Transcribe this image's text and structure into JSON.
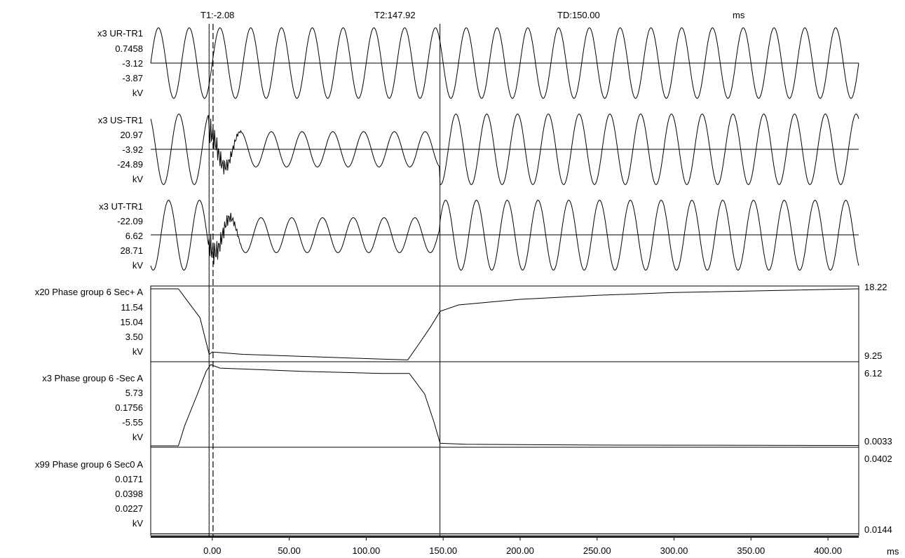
{
  "cursors": {
    "t1_label": "T1:-2.08",
    "t2_label": "T2:147.92",
    "td_label": "TD:150.00",
    "unit_label": "ms",
    "t1_ms": -2.08,
    "t2_ms": 147.92,
    "t1_secondary_ms": 0.5
  },
  "chart_data": {
    "type": "line",
    "x_unit": "ms",
    "xlim": [
      -40,
      420
    ],
    "x_ticks": [
      0,
      50,
      100,
      150,
      200,
      250,
      300,
      350,
      400
    ],
    "x_tick_labels": [
      "0.00",
      "50.00",
      "100.00",
      "150.00",
      "200.00",
      "250.00",
      "300.00",
      "350.00",
      "400.00"
    ],
    "channels": [
      {
        "name": "x3 UR-TR1",
        "labels": [
          "0.7458",
          "-3.12",
          "-3.87",
          "kV"
        ],
        "right_labels": [],
        "kind": "sine",
        "freq_hz": 50,
        "amplitude": 0.9,
        "center_level": 0.5,
        "disturbance": []
      },
      {
        "name": "x3 US-TR1",
        "labels": [
          "20.97",
          "-3.92",
          "-24.89",
          "kV"
        ],
        "right_labels": [],
        "kind": "sine",
        "freq_hz": 50,
        "amplitude": 0.9,
        "center_level": 0.5,
        "disturbance": [
          {
            "start_ms": -2,
            "end_ms": 20,
            "amplitude_factor": 0.5,
            "ringing": 0.4
          },
          {
            "start_ms": 20,
            "end_ms": 148,
            "amplitude_factor": 0.5,
            "ringing": 0
          }
        ]
      },
      {
        "name": "x3 UT-TR1",
        "labels": [
          "-22.09",
          "6.62",
          "28.71",
          "kV"
        ],
        "right_labels": [],
        "kind": "sine",
        "freq_hz": 50,
        "amplitude": 0.9,
        "center_level": 0.5,
        "disturbance": [
          {
            "start_ms": -2,
            "end_ms": 20,
            "amplitude_factor": 0.5,
            "ringing": 0.4
          },
          {
            "start_ms": 20,
            "end_ms": 148,
            "amplitude_factor": 0.5,
            "ringing": 0
          }
        ]
      },
      {
        "name": "x20 Phase group 6 Sec+ A",
        "labels": [
          "11.54",
          "15.04",
          "3.50",
          "kV"
        ],
        "right_labels": [
          "18.22",
          "9.25"
        ],
        "kind": "trace",
        "ylim": [
          9.25,
          18.22
        ],
        "x": [
          -40,
          -22,
          -15,
          -8,
          -2,
          0,
          20,
          50,
          80,
          110,
          127,
          135,
          142,
          148,
          160,
          200,
          250,
          300,
          350,
          420
        ],
        "y": [
          18.22,
          18.22,
          16.4,
          14.6,
          10.0,
          10.3,
          10.0,
          9.8,
          9.6,
          9.4,
          9.3,
          11.5,
          13.5,
          15.4,
          16.2,
          16.9,
          17.4,
          17.75,
          17.95,
          18.22
        ]
      },
      {
        "name": "x3 Phase group 6 -Sec A",
        "labels": [
          "5.73",
          "0.1756",
          "-5.55",
          "kV"
        ],
        "right_labels": [
          "6.12",
          "0.0033"
        ],
        "kind": "trace",
        "ylim": [
          0.0033,
          6.12
        ],
        "x": [
          -40,
          -22,
          -18,
          -10,
          -4,
          -1,
          5,
          60,
          110,
          128,
          138,
          144,
          148,
          165,
          250,
          420
        ],
        "y": [
          0.0033,
          0.0033,
          1.5,
          3.8,
          5.6,
          6.12,
          5.85,
          5.6,
          5.45,
          5.45,
          3.9,
          1.8,
          0.2,
          0.12,
          0.06,
          0.03
        ]
      },
      {
        "name": "x99 Phase group 6 Sec0 A",
        "labels": [
          "0.0171",
          "0.0398",
          "0.0227",
          "kV"
        ],
        "right_labels": [
          "0.0402",
          "0.0144"
        ],
        "kind": "trace",
        "ylim": [
          0.0144,
          0.0402
        ],
        "x": [
          -40,
          420
        ],
        "y": [
          0.0145,
          0.0145
        ]
      }
    ]
  }
}
